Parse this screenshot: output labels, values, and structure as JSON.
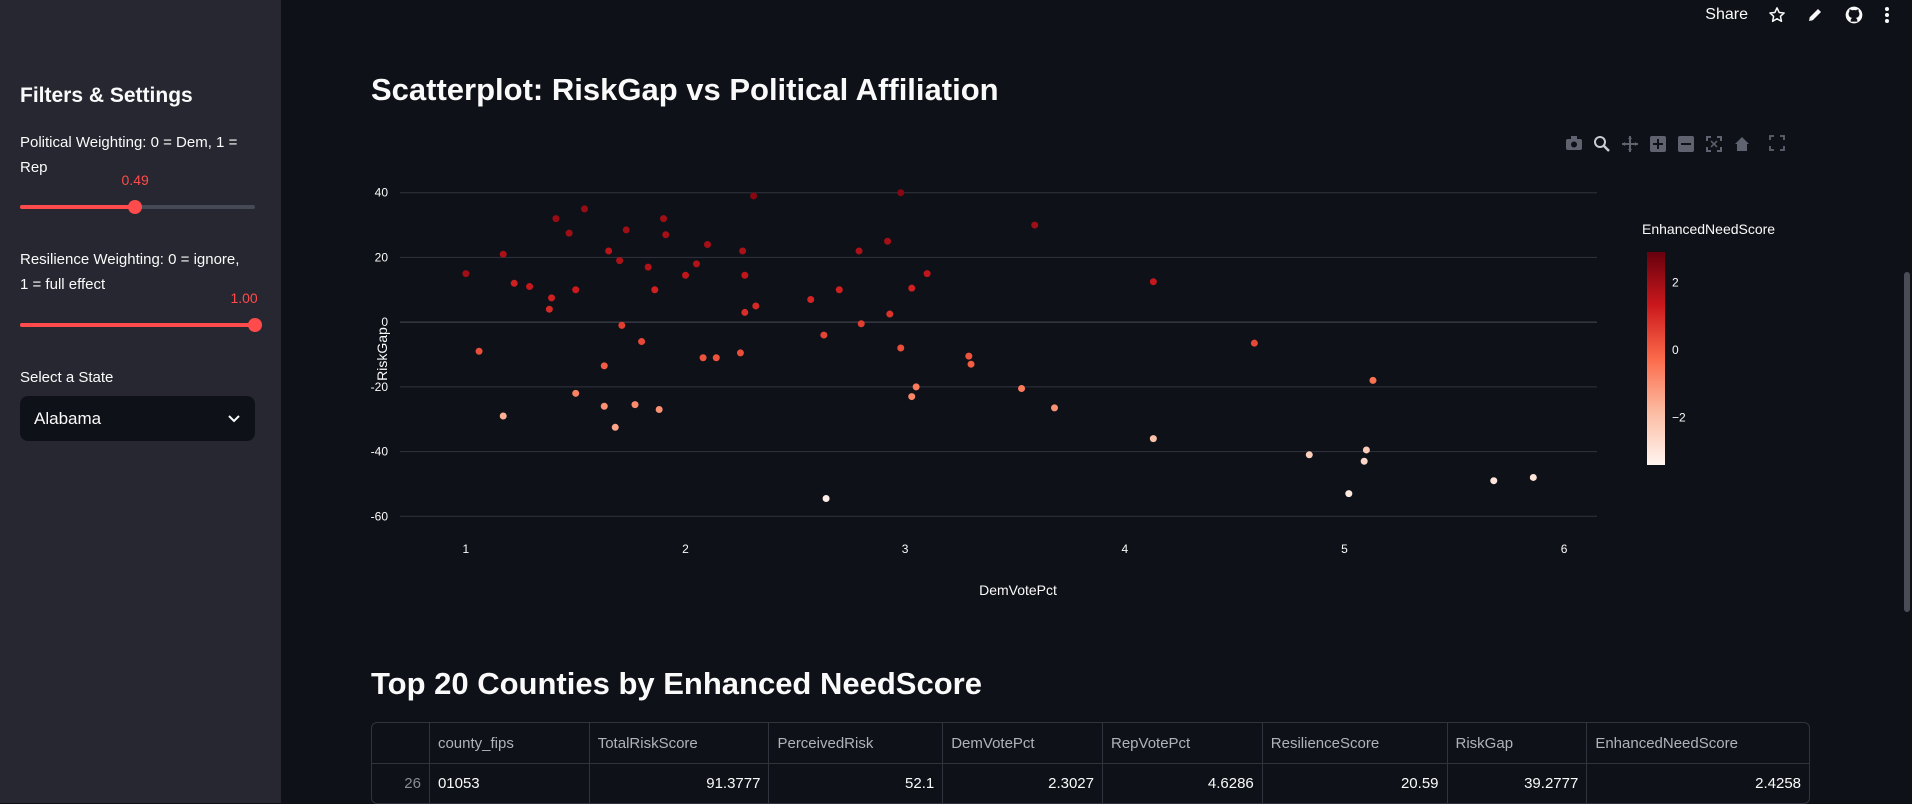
{
  "sidebar": {
    "title": "Filters & Settings",
    "political_label": "Political Weighting: 0 = Dem, 1 = Rep",
    "political_value": "0.49",
    "political_fraction": 0.49,
    "resilience_label": "Resilience Weighting: 0 = ignore, 1 = full effect",
    "resilience_value": "1.00",
    "resilience_fraction": 1.0,
    "state_label": "Select a State",
    "state_value": "Alabama"
  },
  "header": {
    "share_label": "Share"
  },
  "main": {
    "scatter_title": "Scatterplot: RiskGap vs Political Affiliation",
    "table_title": "Top 20 Counties by Enhanced NeedScore"
  },
  "chart_data": {
    "type": "scatter",
    "title": "",
    "xlabel": "DemVotePct",
    "ylabel": "RiskGap",
    "xlim": [
      0.7,
      6.15
    ],
    "ylim": [
      -63,
      43
    ],
    "xticks": [
      1,
      2,
      3,
      4,
      5,
      6
    ],
    "yticks": [
      40,
      20,
      0,
      -20,
      -40,
      -60
    ],
    "colorbar": {
      "title": "EnhancedNeedScore",
      "range": [
        -3.4,
        2.9
      ],
      "ticks": [
        2,
        0,
        -2
      ],
      "tick_labels": [
        "2",
        "0",
        "−2"
      ]
    },
    "points": [
      {
        "x": 1.0,
        "y": 15,
        "c": 2.0
      },
      {
        "x": 1.06,
        "y": -9,
        "c": 0.3
      },
      {
        "x": 1.17,
        "y": 21,
        "c": 1.8
      },
      {
        "x": 1.17,
        "y": -29,
        "c": -1.6
      },
      {
        "x": 1.22,
        "y": 12,
        "c": 1.2
      },
      {
        "x": 1.29,
        "y": 11,
        "c": 1.4
      },
      {
        "x": 1.38,
        "y": 4,
        "c": 1.0
      },
      {
        "x": 1.39,
        "y": 7.5,
        "c": 1.2
      },
      {
        "x": 1.41,
        "y": 32,
        "c": 2.1
      },
      {
        "x": 1.47,
        "y": 27.5,
        "c": 2.0
      },
      {
        "x": 1.5,
        "y": 10,
        "c": 1.3
      },
      {
        "x": 1.5,
        "y": -22,
        "c": -0.7
      },
      {
        "x": 1.54,
        "y": 35,
        "c": 2.1
      },
      {
        "x": 1.63,
        "y": -26,
        "c": -1.0
      },
      {
        "x": 1.63,
        "y": -13.5,
        "c": 0.0
      },
      {
        "x": 1.65,
        "y": 22,
        "c": 1.6
      },
      {
        "x": 1.68,
        "y": -32.5,
        "c": -1.4
      },
      {
        "x": 1.7,
        "y": 19,
        "c": 1.8
      },
      {
        "x": 1.71,
        "y": -1,
        "c": 0.6
      },
      {
        "x": 1.73,
        "y": 28.5,
        "c": 2.0
      },
      {
        "x": 1.77,
        "y": -25.5,
        "c": -0.9
      },
      {
        "x": 1.8,
        "y": -6,
        "c": 0.4
      },
      {
        "x": 1.83,
        "y": 17,
        "c": 1.7
      },
      {
        "x": 1.86,
        "y": 10,
        "c": 1.2
      },
      {
        "x": 1.88,
        "y": -27,
        "c": -1.0
      },
      {
        "x": 1.9,
        "y": 32,
        "c": 2.0
      },
      {
        "x": 1.91,
        "y": 27,
        "c": 1.9
      },
      {
        "x": 2.0,
        "y": 14.5,
        "c": 1.5
      },
      {
        "x": 2.05,
        "y": 18,
        "c": 1.7
      },
      {
        "x": 2.08,
        "y": -11,
        "c": 0.2
      },
      {
        "x": 2.1,
        "y": 24,
        "c": 1.9
      },
      {
        "x": 2.14,
        "y": -11,
        "c": 0.2
      },
      {
        "x": 2.25,
        "y": -9.5,
        "c": 0.3
      },
      {
        "x": 2.26,
        "y": 22,
        "c": 1.8
      },
      {
        "x": 2.27,
        "y": 14.5,
        "c": 1.5
      },
      {
        "x": 2.27,
        "y": 3,
        "c": 0.9
      },
      {
        "x": 2.31,
        "y": 39,
        "c": 2.4
      },
      {
        "x": 2.32,
        "y": 5,
        "c": 1.0
      },
      {
        "x": 2.57,
        "y": 7,
        "c": 1.1
      },
      {
        "x": 2.63,
        "y": -4,
        "c": 0.5
      },
      {
        "x": 2.64,
        "y": -54.5,
        "c": -3.2
      },
      {
        "x": 2.7,
        "y": 10,
        "c": 1.2
      },
      {
        "x": 2.79,
        "y": 22,
        "c": 1.8
      },
      {
        "x": 2.8,
        "y": -0.5,
        "c": 0.6
      },
      {
        "x": 2.92,
        "y": 25,
        "c": 1.9
      },
      {
        "x": 2.93,
        "y": 2.5,
        "c": 0.8
      },
      {
        "x": 2.98,
        "y": 40,
        "c": 2.4
      },
      {
        "x": 2.98,
        "y": -8,
        "c": 0.3
      },
      {
        "x": 3.03,
        "y": 10.5,
        "c": 1.2
      },
      {
        "x": 3.03,
        "y": -23,
        "c": -0.8
      },
      {
        "x": 3.05,
        "y": -20,
        "c": -0.6
      },
      {
        "x": 3.1,
        "y": 15,
        "c": 1.5
      },
      {
        "x": 3.29,
        "y": -10.5,
        "c": 0.2
      },
      {
        "x": 3.3,
        "y": -13,
        "c": 0.0
      },
      {
        "x": 3.53,
        "y": -20.5,
        "c": -0.6
      },
      {
        "x": 3.59,
        "y": 30,
        "c": 2.0
      },
      {
        "x": 3.68,
        "y": -26.5,
        "c": -1.0
      },
      {
        "x": 4.13,
        "y": 12.5,
        "c": 1.4
      },
      {
        "x": 4.13,
        "y": -36,
        "c": -2.0
      },
      {
        "x": 4.59,
        "y": -6.5,
        "c": 0.4
      },
      {
        "x": 4.84,
        "y": -41,
        "c": -2.4
      },
      {
        "x": 5.02,
        "y": -53,
        "c": -3.1
      },
      {
        "x": 5.09,
        "y": -43,
        "c": -2.6
      },
      {
        "x": 5.1,
        "y": -39.5,
        "c": -2.3
      },
      {
        "x": 5.13,
        "y": -18,
        "c": -0.4
      },
      {
        "x": 5.68,
        "y": -49,
        "c": -3.0
      },
      {
        "x": 5.86,
        "y": -48,
        "c": -2.9
      }
    ]
  },
  "table": {
    "columns": [
      "",
      "county_fips",
      "TotalRiskScore",
      "PerceivedRisk",
      "DemVotePct",
      "RepVotePct",
      "ResilienceScore",
      "RiskGap",
      "EnhancedNeedScore"
    ],
    "rows": [
      [
        "26",
        "01053",
        "91.3777",
        "52.1",
        "2.3027",
        "4.6286",
        "20.59",
        "39.2777",
        "2.4258"
      ]
    ]
  }
}
